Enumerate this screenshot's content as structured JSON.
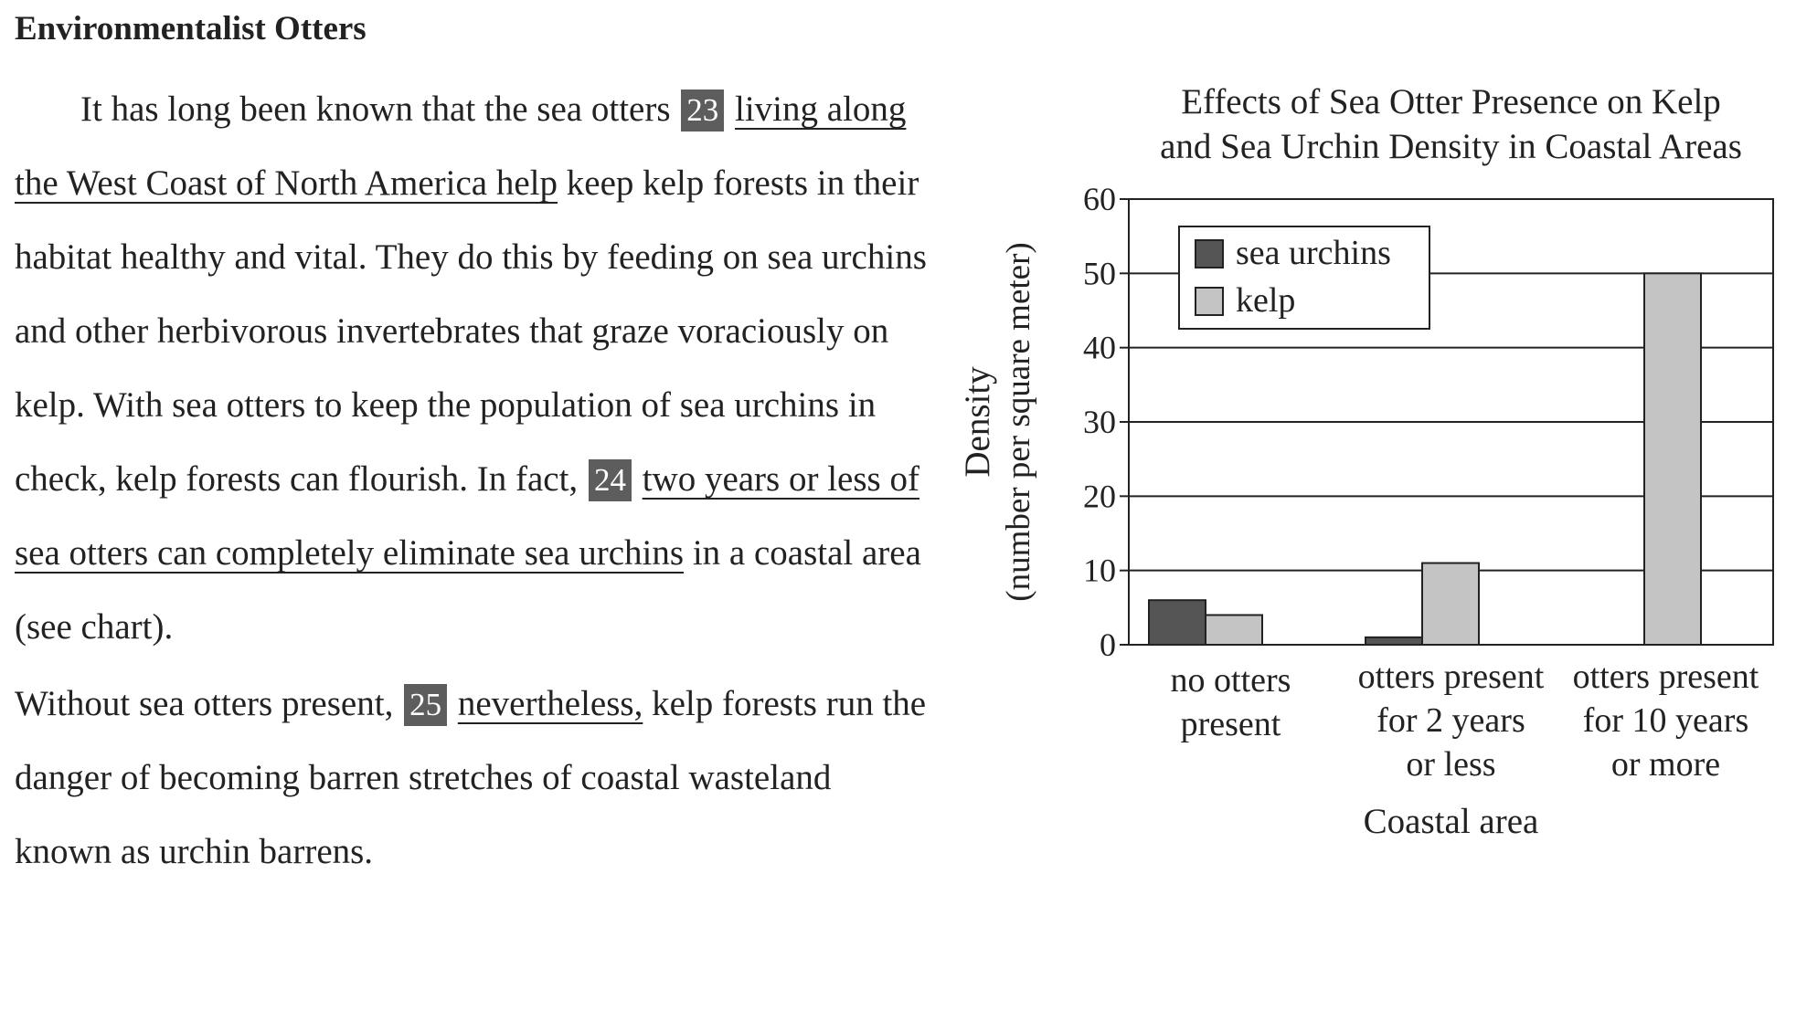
{
  "passage": {
    "title": "Environmentalist Otters",
    "p1": {
      "t1": "It has long been known that the sea otters ",
      "n23": "23",
      "u23": "living along the West Coast of North America help",
      "t2": " keep kelp forests in their habitat healthy and vital. They do this by feeding on sea urchins and other herbivorous invertebrates that graze voraciously on kelp. With sea otters to keep the population of sea urchins in check, kelp forests can flourish. In fact, ",
      "n24": "24",
      "u24": "two years or less of sea otters can completely eliminate sea urchins",
      "t3": " in a coastal area (see chart)."
    },
    "p2": {
      "t1": "Without sea otters present, ",
      "n25": "25",
      "u25": "nevertheless,",
      "t2": " kelp forests run the danger of becoming barren stretches of coastal wasteland known as urchin barrens."
    }
  },
  "chart_data": {
    "type": "bar",
    "title": "Effects of Sea Otter Presence on Kelp and Sea Urchin Density in Coastal Areas",
    "title_lines": [
      "Effects of Sea Otter Presence on Kelp",
      "and Sea Urchin Density in Coastal Areas"
    ],
    "xlabel": "Coastal area",
    "ylabel": "Density",
    "ylabel_sub": "(number per square meter)",
    "categories": [
      "no otters present",
      "otters present for 2 years or less",
      "otters present for 10 years or more"
    ],
    "category_lines": [
      [
        "no otters",
        "present"
      ],
      [
        "otters present",
        "for 2 years",
        "or less"
      ],
      [
        "otters present",
        "for 10 years",
        "or more"
      ]
    ],
    "series": [
      {
        "name": "sea urchins",
        "values": [
          6,
          1,
          0
        ],
        "color": "#555555"
      },
      {
        "name": "kelp",
        "values": [
          4,
          11,
          50
        ],
        "color": "#c4c4c4"
      }
    ],
    "ylim": [
      0,
      60
    ],
    "yticks": [
      0,
      10,
      20,
      30,
      40,
      50,
      60
    ],
    "grid": true,
    "legend_position": "top-left"
  }
}
